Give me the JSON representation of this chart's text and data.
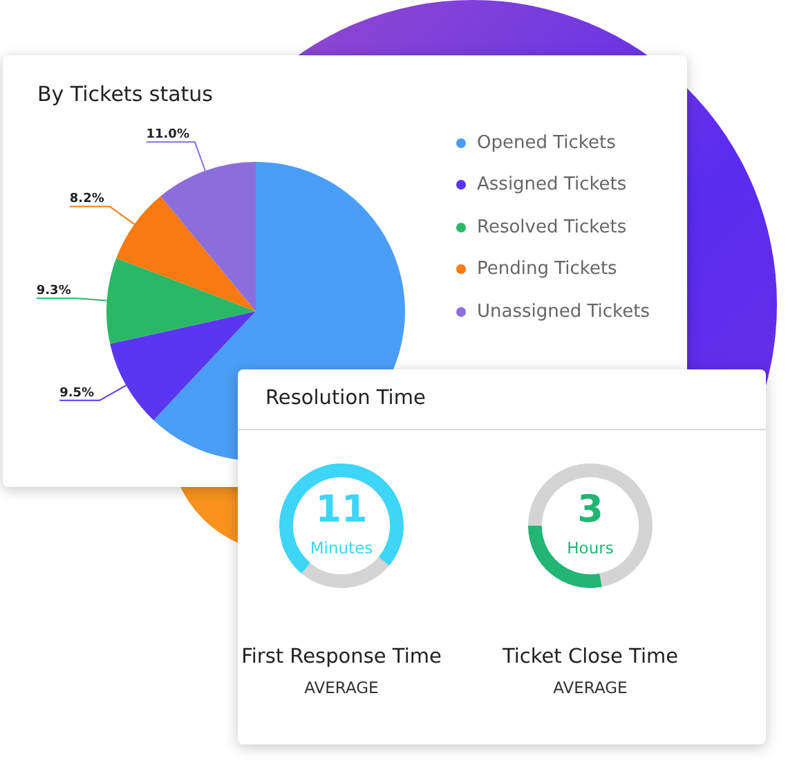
{
  "chart_data": [
    {
      "type": "pie",
      "title": "By Tickets status",
      "categories": [
        "Opened Tickets",
        "Assigned Tickets",
        "Resolved Tickets",
        "Pending Tickets",
        "Unassigned Tickets"
      ],
      "values": [
        62.0,
        9.5,
        9.3,
        8.2,
        11.0
      ],
      "colors": [
        "#4b9ef5",
        "#5b36f0",
        "#2ab866",
        "#f97a12",
        "#8a6fdc"
      ],
      "value_labels": [
        null,
        "9.5%",
        "9.3%",
        "8.2%",
        "11.0%"
      ],
      "legend": "right"
    },
    {
      "type": "other",
      "title": "Resolution Time"
    },
    {
      "type": "donut",
      "title": "First Response Time",
      "subtitle": "AVERAGE",
      "categories": [
        null,
        null
      ],
      "values": [
        25,
        75
      ],
      "colors": [
        "#d4d4d4",
        "#3dd5f8"
      ],
      "annotations": [
        "11",
        "Minutes"
      ]
    },
    {
      "type": "donut",
      "title": "Ticket Close Time",
      "subtitle": "AVERAGE",
      "categories": [
        null,
        null
      ],
      "values": [
        72,
        28
      ],
      "colors": [
        "#d4d4d4",
        "#22b573"
      ],
      "annotations": [
        "3",
        "Hours"
      ]
    }
  ]
}
